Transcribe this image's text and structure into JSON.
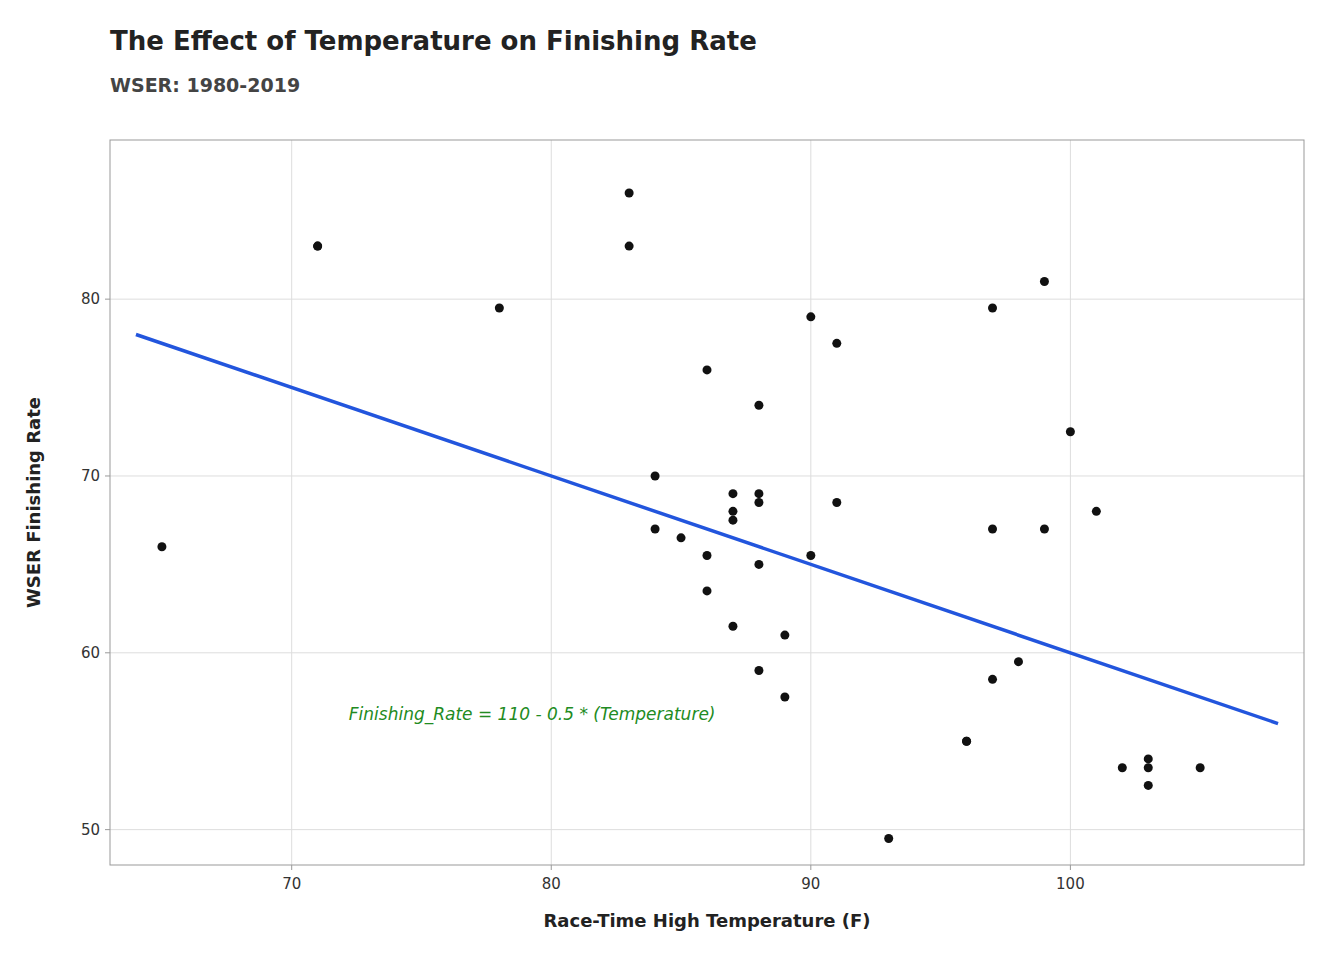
{
  "chart_data": {
    "type": "scatter",
    "title": "The Effect of Temperature on Finishing Rate",
    "subtitle": "WSER: 1980-2019",
    "x_label": "Race-Time High Temperature (F)",
    "y_label": "WSER Finishing Rate",
    "annotations": [
      {
        "text": "Finishing_Rate = 110 - 0.5 * (Temperature)",
        "color": "#228B22"
      }
    ],
    "xlim": [
      63,
      109
    ],
    "ylim": [
      48,
      89
    ],
    "xticks": [
      70,
      80,
      90,
      100
    ],
    "yticks": [
      50,
      60,
      70,
      80
    ],
    "grid": true,
    "series": [
      {
        "type": "scatter",
        "color": "#111111",
        "marker": "circle",
        "x": [
          65,
          71,
          71,
          78,
          83,
          83,
          84,
          84,
          85,
          86,
          86,
          86,
          87,
          87,
          87,
          87,
          88,
          88,
          88,
          88,
          88,
          89,
          89,
          90,
          90,
          91,
          91,
          93,
          96,
          96,
          97,
          97,
          97,
          98,
          99,
          99,
          100,
          101,
          102,
          103,
          103,
          103,
          105
        ],
        "values": [
          66,
          83,
          83,
          79.5,
          83,
          86,
          70,
          67,
          66.5,
          65.5,
          76,
          63.5,
          61.5,
          68,
          67.5,
          69,
          68.5,
          65,
          74,
          69,
          59,
          57.5,
          61,
          79,
          65.5,
          77.5,
          68.5,
          49.5,
          55,
          55,
          67,
          58.5,
          79.5,
          59.5,
          81,
          67,
          72.5,
          68,
          53.5,
          54,
          52.5,
          53.5,
          53.5
        ]
      },
      {
        "type": "line",
        "color": "#2255DD",
        "line_style": "solid",
        "x": [
          64,
          108
        ],
        "values": [
          78,
          56
        ]
      }
    ]
  }
}
